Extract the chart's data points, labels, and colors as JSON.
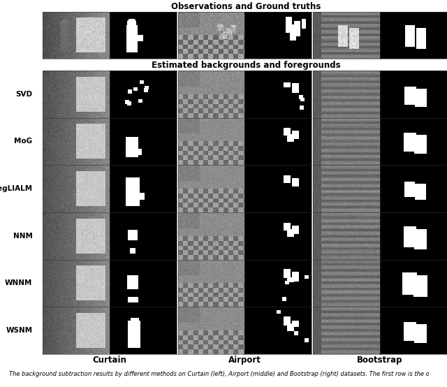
{
  "title_top": "Observations and Ground truths",
  "title_middle": "Estimated backgrounds and foregrounds",
  "row_labels": [
    "SVD",
    "MoG",
    "RegLIALM",
    "NNM",
    "WNNM",
    "WSNM"
  ],
  "col_group_labels": [
    "Curtain",
    "Airport",
    "Bootstrap"
  ],
  "caption": "The background subtraction results by different methods on Curtain (left), Airport (middle) and Bootstrap (right) datasets. The first row is the o",
  "bg_color": "#ffffff",
  "border_color": "#000000",
  "label_fontsize": 7.5,
  "title_fontsize": 8.5,
  "caption_fontsize": 6.0,
  "col_label_fontsize": 8.5,
  "figure_width": 6.4,
  "figure_height": 5.54
}
